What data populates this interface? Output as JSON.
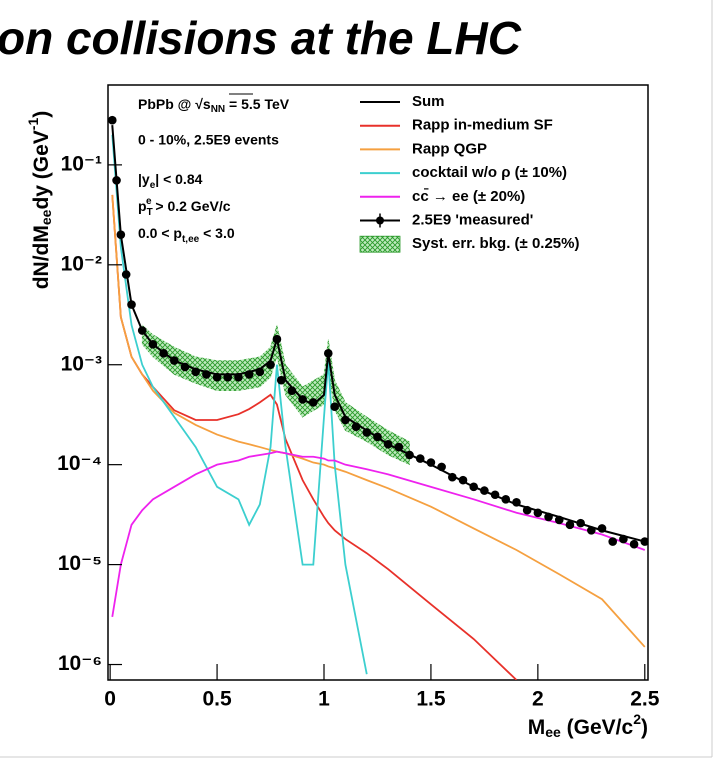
{
  "chart_data": {
    "type": "line",
    "title": "on collisions at the LHC",
    "ylabel_parts": [
      "dN/dM",
      "ee",
      "dy (GeV",
      "-1",
      ")"
    ],
    "xlabel_parts": [
      "M",
      "ee",
      " (GeV/c",
      "2",
      ")"
    ],
    "annotations": [
      [
        "PbPb @ √s",
        "NN",
        " = 5.5 TeV"
      ],
      [
        "0 - 10%, 2.5E9 events"
      ],
      [
        "|y",
        "e",
        "| < 0.84"
      ],
      [
        "p",
        "T",
        "e",
        " > 0.2 GeV/c"
      ],
      [
        "0.0 < p",
        "t,ee",
        " < 3.0"
      ]
    ],
    "log_y": true,
    "xlim": [
      -0.01,
      2.515
    ],
    "ylim": [
      7e-07,
      0.63
    ],
    "xticks": [
      0,
      0.5,
      1,
      1.5,
      2,
      2.5
    ],
    "yticks": [
      {
        "value": 0.1,
        "label": "10⁻¹"
      },
      {
        "value": 0.01,
        "label": "10⁻²"
      },
      {
        "value": 0.001,
        "label": "10⁻³"
      },
      {
        "value": 0.0001,
        "label": "10⁻⁴"
      },
      {
        "value": 1e-05,
        "label": "10⁻⁵"
      },
      {
        "value": 1e-06,
        "label": "10⁻⁶"
      }
    ],
    "x": [
      0.01,
      0.05,
      0.1,
      0.15,
      0.2,
      0.3,
      0.4,
      0.5,
      0.6,
      0.65,
      0.7,
      0.75,
      0.78,
      0.82,
      0.9,
      0.95,
      1.0,
      1.02,
      1.05,
      1.1,
      1.2,
      1.3,
      1.5,
      1.7,
      1.9,
      2.1,
      2.3,
      2.5
    ],
    "series": [
      {
        "name": "Sum",
        "color": "#000000",
        "values": [
          0.25,
          0.02,
          0.004,
          0.0022,
          0.0016,
          0.0011,
          0.0009,
          0.0008,
          0.0008,
          0.00085,
          0.0009,
          0.0011,
          0.0018,
          0.0007,
          0.00045,
          0.0004,
          0.0005,
          0.0013,
          0.0005,
          0.0003,
          0.00022,
          0.00016,
          0.0001,
          6e-05,
          4e-05,
          3e-05,
          2.2e-05,
          1.7e-05
        ]
      },
      {
        "name": "Rapp in-medium SF",
        "color": "#e8312a",
        "values": [
          0.05,
          0.003,
          0.0012,
          0.0008,
          0.0006,
          0.00035,
          0.00028,
          0.00028,
          0.00032,
          0.00036,
          0.00042,
          0.0005,
          0.0004,
          0.00018,
          7e-05,
          4.5e-05,
          3e-05,
          2.6e-05,
          2.2e-05,
          1.8e-05,
          1.3e-05,
          9e-06,
          4e-06,
          1.8e-06,
          7e-07,
          null,
          null,
          null
        ]
      },
      {
        "name": "Rapp QGP",
        "color": "#f5a040",
        "values": [
          0.05,
          0.003,
          0.0012,
          0.0008,
          0.00055,
          0.00033,
          0.00025,
          0.0002,
          0.00017,
          0.00016,
          0.00015,
          0.00014,
          0.000135,
          0.00013,
          0.000115,
          0.000105,
          0.0001,
          9.6e-05,
          9.2e-05,
          8.5e-05,
          7e-05,
          5.8e-05,
          3.8e-05,
          2.3e-05,
          1.4e-05,
          8e-06,
          4.5e-06,
          1.5e-06
        ]
      },
      {
        "name": "cocktail w/o ρ (± 10%)",
        "color": "#3ccfcf",
        "values": [
          0.2,
          0.015,
          0.0025,
          0.001,
          0.0006,
          0.0003,
          0.00015,
          6e-05,
          4.5e-05,
          2.5e-05,
          4e-05,
          0.00015,
          0.001,
          0.00015,
          1e-05,
          1e-05,
          0.0003,
          0.0011,
          0.0001,
          1e-05,
          8e-07,
          null,
          null,
          null,
          null,
          null,
          null,
          null
        ]
      },
      {
        "name": "cc̄ → ee (± 20%)",
        "color": "#ee22ee",
        "values": [
          3e-06,
          1e-05,
          2.5e-05,
          3.5e-05,
          4.5e-05,
          6e-05,
          8e-05,
          0.0001,
          0.00011,
          0.00012,
          0.000125,
          0.00013,
          0.000135,
          0.00013,
          0.00012,
          0.00012,
          0.000115,
          0.00011,
          0.00011,
          0.0001,
          9e-05,
          8e-05,
          6e-05,
          4.5e-05,
          3.3e-05,
          2.6e-05,
          2e-05,
          1.4e-05
        ]
      }
    ],
    "measured": {
      "name": "2.5E9 'measured'",
      "color": "#000000",
      "x": [
        0.01,
        0.03,
        0.05,
        0.075,
        0.1,
        0.15,
        0.2,
        0.25,
        0.3,
        0.35,
        0.4,
        0.45,
        0.5,
        0.55,
        0.6,
        0.65,
        0.7,
        0.75,
        0.78,
        0.8,
        0.85,
        0.9,
        0.95,
        1.02,
        1.05,
        1.1,
        1.15,
        1.2,
        1.25,
        1.3,
        1.35,
        1.4,
        1.45,
        1.5,
        1.55,
        1.6,
        1.65,
        1.7,
        1.75,
        1.8,
        1.85,
        1.9,
        1.95,
        2.0,
        2.05,
        2.1,
        2.15,
        2.2,
        2.25,
        2.3,
        2.35,
        2.4,
        2.45,
        2.5
      ],
      "values": [
        0.28,
        0.07,
        0.02,
        0.008,
        0.004,
        0.0022,
        0.0016,
        0.0013,
        0.0011,
        0.00095,
        0.00085,
        0.0008,
        0.00075,
        0.00075,
        0.00075,
        0.0008,
        0.00085,
        0.001,
        0.0018,
        0.0007,
        0.00055,
        0.00045,
        0.00042,
        0.0013,
        0.00038,
        0.00028,
        0.00024,
        0.00021,
        0.00019,
        0.00016,
        0.00015,
        0.000125,
        0.000115,
        0.000105,
        9.5e-05,
        7.5e-05,
        7e-05,
        6e-05,
        5.5e-05,
        5e-05,
        4.5e-05,
        4.2e-05,
        3.5e-05,
        3.3e-05,
        3e-05,
        2.8e-05,
        2.5e-05,
        2.6e-05,
        2.2e-05,
        2.3e-05,
        1.7e-05,
        1.8e-05,
        1.6e-05,
        1.7e-05
      ]
    },
    "band": {
      "name": "Syst. err. bkg. (± 0.25%)",
      "color": "#2a9a2a",
      "x": [
        0.15,
        0.2,
        0.3,
        0.4,
        0.5,
        0.6,
        0.7,
        0.75,
        0.78,
        0.82,
        0.9,
        1.0,
        1.02,
        1.05,
        1.1,
        1.2,
        1.3,
        1.4
      ],
      "lower": [
        0.0016,
        0.0012,
        0.0008,
        0.00065,
        0.00055,
        0.00055,
        0.0006,
        0.00075,
        0.0012,
        0.0005,
        0.0003,
        0.0004,
        0.0009,
        0.00035,
        0.00022,
        0.00017,
        0.000125,
        0.0001
      ],
      "upper": [
        0.0025,
        0.002,
        0.0015,
        0.0012,
        0.0011,
        0.0011,
        0.0012,
        0.0015,
        0.0025,
        0.001,
        0.0006,
        0.0008,
        0.0018,
        0.0007,
        0.00042,
        0.0003,
        0.00022,
        0.00017
      ]
    }
  }
}
